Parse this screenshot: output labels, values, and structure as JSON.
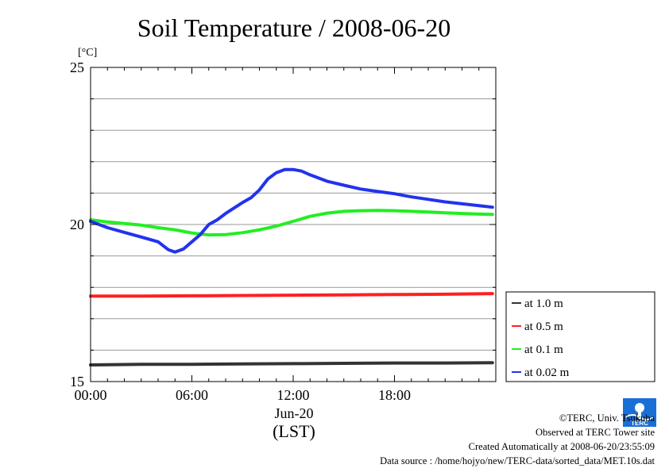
{
  "chart_data": {
    "type": "line",
    "title": "Soil Temperature / 2008-06-20",
    "ylabel": "[°C]",
    "xlabel": "(LST)",
    "x_date_label": "Jun-20",
    "x_ticks": [
      0,
      6,
      12,
      18
    ],
    "x_tick_labels": [
      "00:00",
      "06:00",
      "12:00",
      "18:00"
    ],
    "xlim": [
      0,
      24
    ],
    "ylim": [
      15,
      25
    ],
    "y_ticks": [
      15,
      20,
      25
    ],
    "y_tick_labels": [
      "15",
      "20",
      "25"
    ],
    "y_grid_step": 1,
    "grid": true,
    "legend_position": "right",
    "series": [
      {
        "name": "at 1.0 m",
        "color": "#333333",
        "x": [
          0,
          3,
          6,
          9,
          12,
          15,
          18,
          21,
          23.8
        ],
        "y": [
          15.53,
          15.55,
          15.55,
          15.56,
          15.57,
          15.58,
          15.59,
          15.59,
          15.6
        ]
      },
      {
        "name": "at 0.5 m",
        "color": "#ff2020",
        "x": [
          0,
          3,
          6,
          9,
          12,
          15,
          18,
          21,
          23.8
        ],
        "y": [
          17.72,
          17.72,
          17.73,
          17.74,
          17.75,
          17.76,
          17.77,
          17.78,
          17.8
        ]
      },
      {
        "name": "at 0.1 m",
        "color": "#22ee22",
        "x": [
          0,
          1,
          2,
          3,
          4,
          5,
          6,
          7,
          8,
          9,
          10,
          11,
          12,
          13,
          14,
          15,
          16,
          17,
          18,
          19,
          20,
          21,
          22,
          23,
          23.8
        ],
        "y": [
          20.15,
          20.08,
          20.03,
          19.98,
          19.9,
          19.83,
          19.73,
          19.67,
          19.68,
          19.74,
          19.83,
          19.95,
          20.1,
          20.26,
          20.36,
          20.42,
          20.44,
          20.45,
          20.44,
          20.42,
          20.4,
          20.37,
          20.35,
          20.33,
          20.32
        ]
      },
      {
        "name": "at 0.02 m",
        "color": "#2233ee",
        "x": [
          0,
          1,
          2,
          3,
          4,
          4.6,
          5,
          5.5,
          6,
          6.5,
          7,
          7.5,
          8,
          9,
          9.5,
          10,
          10.5,
          11,
          11.5,
          12,
          12.5,
          13,
          14,
          15,
          16,
          17,
          18,
          19,
          20,
          21,
          22,
          23,
          23.8
        ],
        "y": [
          20.1,
          19.9,
          19.75,
          19.6,
          19.45,
          19.2,
          19.12,
          19.22,
          19.45,
          19.68,
          20.0,
          20.15,
          20.35,
          20.7,
          20.85,
          21.1,
          21.45,
          21.65,
          21.75,
          21.75,
          21.7,
          21.58,
          21.38,
          21.25,
          21.13,
          21.05,
          20.98,
          20.88,
          20.8,
          20.72,
          20.66,
          20.6,
          20.55
        ]
      }
    ]
  },
  "footer": {
    "copyright": "©TERC, Univ. Tsukuba",
    "observed": "Observed at TERC Tower site",
    "created": "Created Automatically at 2008-06-20/23:55:09",
    "source": "Data source : /home/hojyo/new/TERC-data/sorted_data/MET.10s.dat"
  },
  "logo": {
    "text": "TERC",
    "color": "#1a6fd6"
  }
}
